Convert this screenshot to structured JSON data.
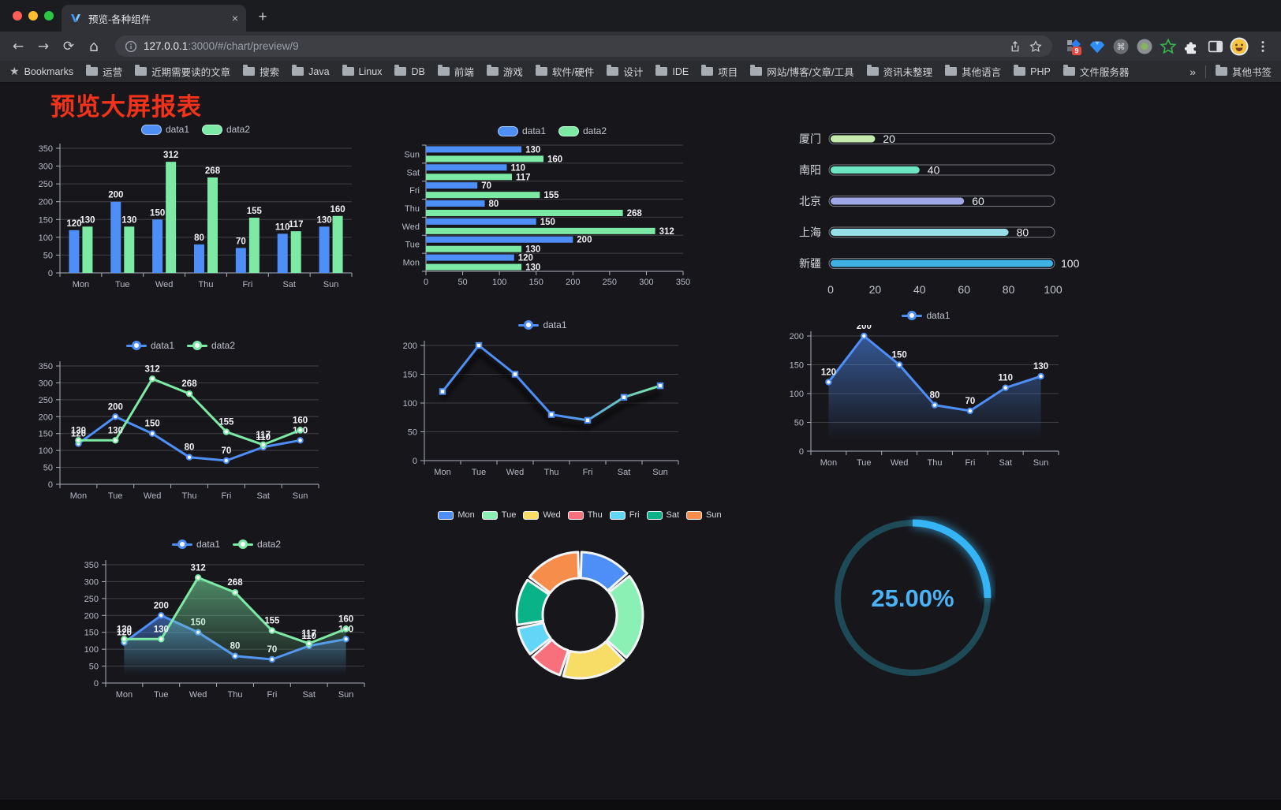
{
  "browser": {
    "tab_title": "预览-各种组件",
    "url_host": "127.0.0.1",
    "url_rest": ":3000/#/chart/preview/9",
    "bookmarks_label": "Bookmarks",
    "bookmarks": [
      "运营",
      "近期需要读的文章",
      "搜索",
      "Java",
      "Linux",
      "DB",
      "前端",
      "游戏",
      "软件/硬件",
      "设计",
      "IDE",
      "项目",
      "网站/博客/文章/工具",
      "资讯未整理",
      "其他语言",
      "PHP",
      "文件服务器"
    ],
    "bookmarks_overflow": "»",
    "other_bookmarks": "其他书签",
    "extension_badge": "9"
  },
  "page": {
    "title": "预览大屏报表",
    "title_color": "#f2321a"
  },
  "chart_data": [
    {
      "type": "bar",
      "categories": [
        "Mon",
        "Tue",
        "Wed",
        "Thu",
        "Fri",
        "Sat",
        "Sun"
      ],
      "series": [
        {
          "name": "data1",
          "color": "#4e8ef7",
          "values": [
            120,
            200,
            150,
            80,
            70,
            110,
            130
          ]
        },
        {
          "name": "data2",
          "color": "#7ceaa5",
          "values": [
            130,
            130,
            312,
            268,
            155,
            117,
            160
          ]
        }
      ],
      "ylim": [
        0,
        350
      ],
      "ytick": 50,
      "show_labels": true,
      "legend_position": "top"
    },
    {
      "type": "hbar",
      "categories": [
        "Mon",
        "Tue",
        "Wed",
        "Thu",
        "Fri",
        "Sat",
        "Sun"
      ],
      "display_order": "Sun-at-top",
      "series": [
        {
          "name": "data1",
          "color": "#4e8ef7",
          "values": [
            120,
            200,
            150,
            80,
            70,
            110,
            130
          ]
        },
        {
          "name": "data2",
          "color": "#7ceaa5",
          "values": [
            130,
            130,
            312,
            268,
            155,
            117,
            160
          ]
        }
      ],
      "xlim": [
        0,
        350
      ],
      "xtick": 50,
      "show_labels": true,
      "legend_position": "top"
    },
    {
      "type": "progress",
      "items": [
        {
          "label": "厦门",
          "value": 20,
          "color": "#c4ebad"
        },
        {
          "label": "南阳",
          "value": 40,
          "color": "#6be6c1"
        },
        {
          "label": "北京",
          "value": 60,
          "color": "#a0a7e6"
        },
        {
          "label": "上海",
          "value": 80,
          "color": "#96dee8"
        },
        {
          "label": "新疆",
          "value": 100,
          "color": "#3fb1e3"
        }
      ],
      "xlim": [
        0,
        100
      ],
      "xticks": [
        0,
        20,
        40,
        60,
        80,
        100
      ]
    },
    {
      "type": "line",
      "categories": [
        "Mon",
        "Tue",
        "Wed",
        "Thu",
        "Fri",
        "Sat",
        "Sun"
      ],
      "series": [
        {
          "name": "data1",
          "color": "#4e8ef7",
          "values": [
            120,
            200,
            150,
            80,
            70,
            110,
            130
          ]
        },
        {
          "name": "data2",
          "color": "#7ceaa5",
          "values": [
            130,
            130,
            312,
            268,
            155,
            117,
            160
          ]
        }
      ],
      "ylim": [
        0,
        350
      ],
      "ytick": 50,
      "show_labels": true,
      "marker": "circle"
    },
    {
      "type": "line",
      "categories": [
        "Mon",
        "Tue",
        "Wed",
        "Thu",
        "Fri",
        "Sat",
        "Sun"
      ],
      "series": [
        {
          "name": "data1",
          "color": "#4e8ef7",
          "gradient_to": "#7ceaa5",
          "shadow": true,
          "values": [
            120,
            200,
            150,
            80,
            70,
            110,
            130
          ]
        }
      ],
      "ylim": [
        0,
        200
      ],
      "ytick": 50,
      "show_labels": false,
      "marker": "square"
    },
    {
      "type": "line",
      "categories": [
        "Mon",
        "Tue",
        "Wed",
        "Thu",
        "Fri",
        "Sat",
        "Sun"
      ],
      "series": [
        {
          "name": "data1",
          "color": "#4e8ef7",
          "area": true,
          "values": [
            120,
            200,
            150,
            80,
            70,
            110,
            130
          ]
        }
      ],
      "ylim": [
        0,
        200
      ],
      "ytick": 50,
      "show_labels": true,
      "marker": "circle"
    },
    {
      "type": "line",
      "categories": [
        "Mon",
        "Tue",
        "Wed",
        "Thu",
        "Fri",
        "Sat",
        "Sun"
      ],
      "series": [
        {
          "name": "data1",
          "color": "#4e8ef7",
          "area": true,
          "values": [
            120,
            200,
            150,
            80,
            70,
            110,
            130
          ]
        },
        {
          "name": "data2",
          "color": "#7ceaa5",
          "area": true,
          "values": [
            130,
            130,
            312,
            268,
            155,
            117,
            160
          ]
        }
      ],
      "ylim": [
        0,
        350
      ],
      "ytick": 50,
      "show_labels": true,
      "marker": "circle"
    },
    {
      "type": "pie",
      "items": [
        {
          "name": "Mon",
          "value": 120,
          "color": "#4e8ef7"
        },
        {
          "name": "Tue",
          "value": 200,
          "color": "#8bf0b4"
        },
        {
          "name": "Wed",
          "value": 150,
          "color": "#f7dc66"
        },
        {
          "name": "Thu",
          "value": 80,
          "color": "#f7707c"
        },
        {
          "name": "Fri",
          "value": 70,
          "color": "#63d5f7"
        },
        {
          "name": "Sat",
          "value": 110,
          "color": "#09b287"
        },
        {
          "name": "Sun",
          "value": 130,
          "color": "#f78d4a"
        }
      ],
      "donut": true,
      "border_color": "#f2f4f6"
    },
    {
      "type": "gauge",
      "label": "25.00%",
      "percent": 25,
      "color": "#35b5f6",
      "track_color": "#1e4a57",
      "text_color": "#4ab2f5"
    }
  ]
}
